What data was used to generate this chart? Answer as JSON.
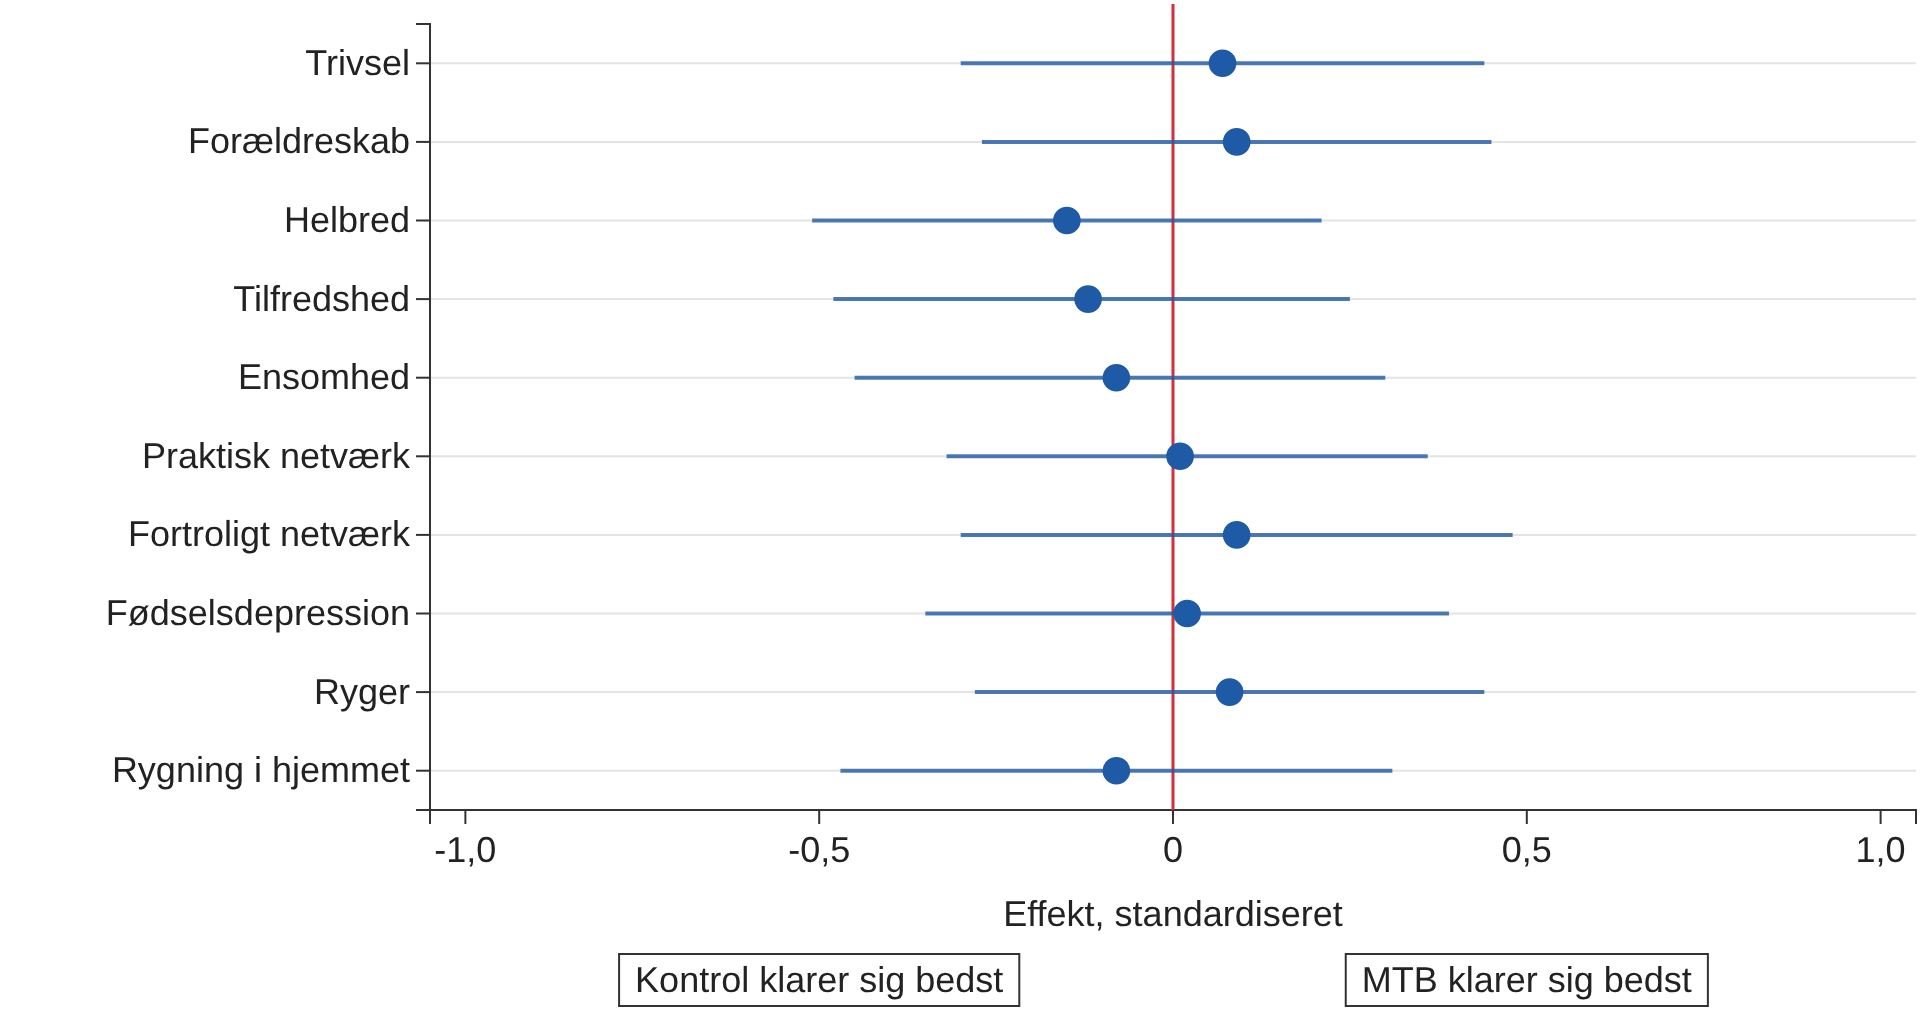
{
  "chart_data": {
    "type": "scatter",
    "orientation": "horizontal",
    "xlabel": "Effekt, standardiseret",
    "categories": [
      "Trivsel",
      "Forældreskab",
      "Helbred",
      "Tilfredshed",
      "Ensomhed",
      "Praktisk netværk",
      "Fortroligt netværk",
      "Fødselsdepression",
      "Ryger",
      "Rygning i hjemmet"
    ],
    "series": [
      {
        "color": "#1f5aa6",
        "values": [
          0.07,
          0.09,
          -0.15,
          -0.12,
          -0.08,
          0.01,
          0.09,
          0.02,
          0.08,
          -0.08
        ],
        "errors": [
          [
            -0.3,
            0.44
          ],
          [
            -0.27,
            0.45
          ],
          [
            -0.51,
            0.21
          ],
          [
            -0.48,
            0.25
          ],
          [
            -0.45,
            0.3
          ],
          [
            -0.32,
            0.36
          ],
          [
            -0.3,
            0.48
          ],
          [
            -0.35,
            0.39
          ],
          [
            -0.28,
            0.44
          ],
          [
            -0.47,
            0.31
          ]
        ]
      }
    ],
    "xlim": [
      -1.05,
      1.05
    ],
    "xticks": [
      {
        "value": -1,
        "label": "-1,0"
      },
      {
        "value": -0.5,
        "label": "-0,5"
      },
      {
        "value": 0,
        "label": "0"
      },
      {
        "value": 0.5,
        "label": "0,5"
      },
      {
        "value": 1,
        "label": "1,0"
      }
    ],
    "ref_lines": [
      {
        "axis": "x",
        "value": 0,
        "color": "#d0313b"
      }
    ],
    "grid": "y",
    "marker": "circle",
    "annotations": [
      "Kontrol klarer sig bedst",
      "MTB klarer sig bedst"
    ]
  }
}
